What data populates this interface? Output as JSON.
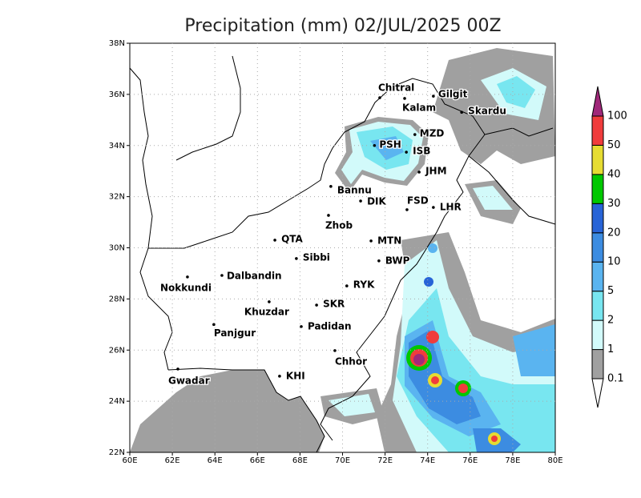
{
  "title": "Precipitation (mm) 02/JUL/2025 00Z",
  "map": {
    "xticks": [
      {
        "value": 60,
        "label": "60E"
      },
      {
        "value": 62,
        "label": "62E"
      },
      {
        "value": 64,
        "label": "64E"
      },
      {
        "value": 66,
        "label": "66E"
      },
      {
        "value": 68,
        "label": "68E"
      },
      {
        "value": 70,
        "label": "70E"
      },
      {
        "value": 72,
        "label": "72E"
      },
      {
        "value": 74,
        "label": "74E"
      },
      {
        "value": 76,
        "label": "76E"
      },
      {
        "value": 78,
        "label": "78E"
      },
      {
        "value": 80,
        "label": "80E"
      }
    ],
    "yticks": [
      {
        "value": 22,
        "label": "22N"
      },
      {
        "value": 24,
        "label": "24N"
      },
      {
        "value": 26,
        "label": "26N"
      },
      {
        "value": 28,
        "label": "28N"
      },
      {
        "value": 30,
        "label": "30N"
      },
      {
        "value": 32,
        "label": "32N"
      },
      {
        "value": 34,
        "label": "34N"
      },
      {
        "value": 36,
        "label": "36N"
      },
      {
        "value": 38,
        "label": "38N"
      }
    ],
    "grid": true,
    "cities": [
      {
        "name": "Chitral",
        "lon": 71.75,
        "lat": 35.87
      },
      {
        "name": "Kalam",
        "lon": 72.92,
        "lat": 35.84
      },
      {
        "name": "Gilgit",
        "lon": 74.27,
        "lat": 35.93
      },
      {
        "name": "Skardu",
        "lon": 75.6,
        "lat": 35.3
      },
      {
        "name": "MZD",
        "lon": 73.4,
        "lat": 34.43
      },
      {
        "name": "PSH",
        "lon": 71.5,
        "lat": 34.0
      },
      {
        "name": "ISB",
        "lon": 73.0,
        "lat": 33.74
      },
      {
        "name": "JHM",
        "lon": 73.6,
        "lat": 32.96
      },
      {
        "name": "Bannu",
        "lon": 69.45,
        "lat": 32.4
      },
      {
        "name": "DIK",
        "lon": 70.85,
        "lat": 31.83
      },
      {
        "name": "FSD",
        "lon": 73.03,
        "lat": 31.49
      },
      {
        "name": "LHR",
        "lon": 74.27,
        "lat": 31.58
      },
      {
        "name": "Zhob",
        "lon": 69.34,
        "lat": 31.27
      },
      {
        "name": "QTA",
        "lon": 66.82,
        "lat": 30.3
      },
      {
        "name": "MTN",
        "lon": 71.34,
        "lat": 30.27
      },
      {
        "name": "Sibbi",
        "lon": 67.83,
        "lat": 29.58
      },
      {
        "name": "BWP",
        "lon": 71.71,
        "lat": 29.49
      },
      {
        "name": "Dalbandin",
        "lon": 64.33,
        "lat": 28.92
      },
      {
        "name": "Nokkundi",
        "lon": 62.71,
        "lat": 28.86
      },
      {
        "name": "RYK",
        "lon": 70.2,
        "lat": 28.51
      },
      {
        "name": "Khuzdar",
        "lon": 66.55,
        "lat": 27.89
      },
      {
        "name": "SKR",
        "lon": 68.78,
        "lat": 27.76
      },
      {
        "name": "Padidan",
        "lon": 68.06,
        "lat": 26.92
      },
      {
        "name": "Panjgur",
        "lon": 63.95,
        "lat": 27.0
      },
      {
        "name": "Chhor",
        "lon": 69.64,
        "lat": 25.98
      },
      {
        "name": "KHI",
        "lon": 67.04,
        "lat": 24.98
      },
      {
        "name": "Gwadar",
        "lon": 62.26,
        "lat": 25.26
      }
    ]
  },
  "colorbar": {
    "levels": [
      0.1,
      1,
      2,
      5,
      10,
      20,
      30,
      40,
      50,
      100
    ],
    "colors": [
      "#ffffff",
      "#a0a0a0",
      "#d2fafa",
      "#78e6f0",
      "#5ab4f0",
      "#3c8ce1",
      "#2864d7",
      "#00c800",
      "#e6dc32",
      "#f03c3c",
      "#a0287a"
    ]
  }
}
